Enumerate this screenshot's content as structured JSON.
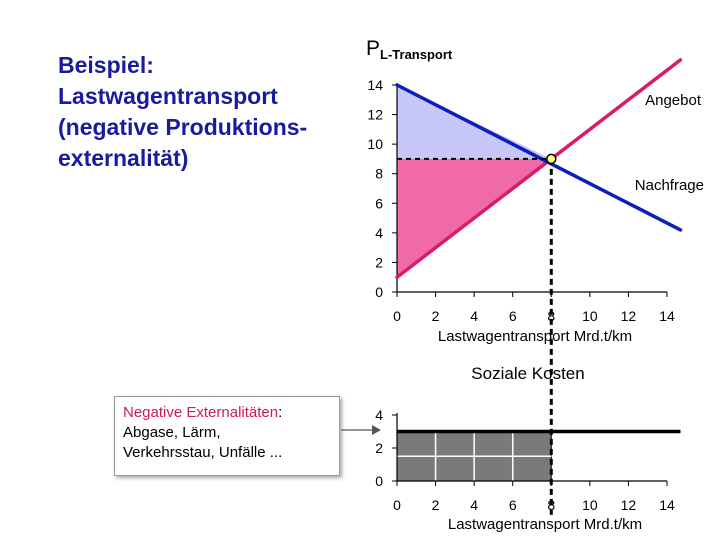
{
  "title": {
    "line1": "Beispiel:",
    "line2": "Lastwagentransport",
    "line3": "(negative Produktions-",
    "line4": "externalität)"
  },
  "externality_box": {
    "highlight": "Negative Externalitäten",
    "colon": ":",
    "line2": "Abgase, Lärm,",
    "line3": "Verkehrsstau, Unfälle ..."
  },
  "colors": {
    "supply": "#d81b6a",
    "demand": "#0b1fbf",
    "consumer_surplus": "#c8c8f8",
    "producer_surplus": "#f06aa8",
    "cost_fill": "#7a7a7a"
  },
  "chart_data": [
    {
      "type": "line",
      "ylabel_main": "P",
      "ylabel_sub": "L-Transport",
      "xlabel": "Lastwagentransport Mrd.t/km",
      "xlim": [
        0,
        14
      ],
      "ylim": [
        0,
        14
      ],
      "x_ticks": [
        0,
        2,
        4,
        6,
        8,
        10,
        12,
        14
      ],
      "y_ticks": [
        0,
        2,
        4,
        6,
        8,
        10,
        12,
        14
      ],
      "series": [
        {
          "name": "Angebot",
          "x": [
            0,
            14.7
          ],
          "y": [
            1,
            15.7
          ]
        },
        {
          "name": "Nachfrage",
          "x": [
            0,
            14.7
          ],
          "y": [
            14,
            4.2
          ]
        }
      ],
      "equilibrium": {
        "x": 8,
        "y": 9
      },
      "areas": [
        {
          "kind": "consumer_surplus",
          "points": [
            [
              0,
              14
            ],
            [
              8,
              9
            ],
            [
              0,
              9
            ]
          ]
        },
        {
          "kind": "producer_surplus",
          "points": [
            [
              0,
              1
            ],
            [
              8,
              9
            ],
            [
              0,
              9
            ]
          ]
        }
      ]
    },
    {
      "type": "area",
      "title": "Soziale Kosten",
      "xlabel": "Lastwagentransport Mrd.t/km",
      "xlim": [
        0,
        14
      ],
      "ylim": [
        0,
        4
      ],
      "x_ticks": [
        0,
        2,
        4,
        6,
        8,
        10,
        12,
        14
      ],
      "y_ticks": [
        0,
        2,
        4
      ],
      "cost_level": 3,
      "filled_until_x": 8,
      "line_until_x": 14.7
    }
  ]
}
